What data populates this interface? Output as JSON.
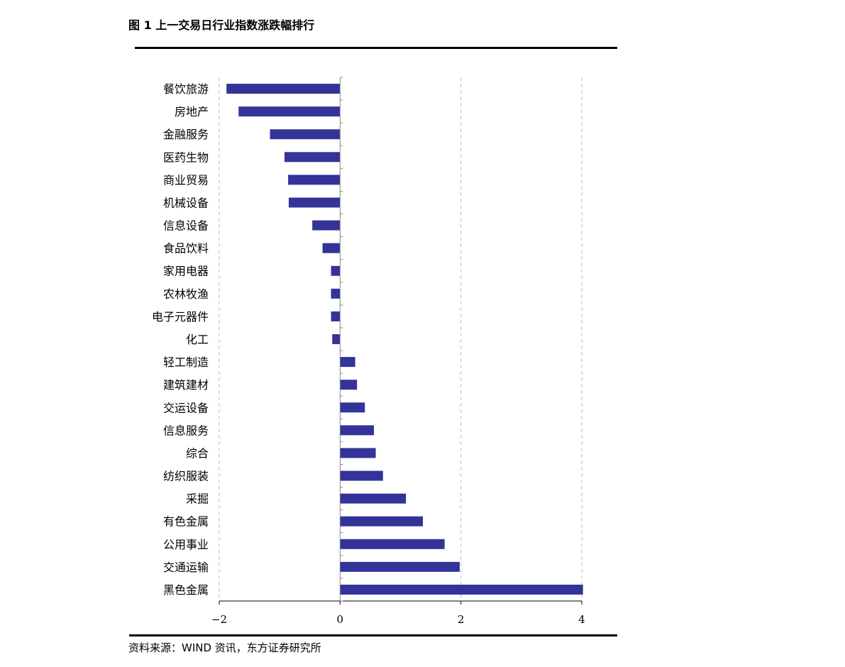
{
  "figure": {
    "title": "图 1  上一交易日行业指数涨跌幅排行",
    "source": "资料来源：WIND 资讯，东方证券研究所"
  },
  "colors": {
    "bar": "#333399",
    "grid": "#bbbbbb",
    "axis": "#000000"
  },
  "chart_data": {
    "type": "bar",
    "orientation": "horizontal",
    "title": "",
    "xlabel": "",
    "ylabel": "",
    "xlim": [
      -2,
      4
    ],
    "x_ticks": [
      -2,
      0,
      2,
      4
    ],
    "x_tick_labels": [
      "−2",
      "0",
      "2",
      "4"
    ],
    "grid": "vertical-dashed",
    "categories": [
      "餐饮旅游",
      "房地产",
      "金融服务",
      "医药生物",
      "商业贸易",
      "机械设备",
      "信息设备",
      "食品饮料",
      "家用电器",
      "农林牧渔",
      "电子元器件",
      "化工",
      "轻工制造",
      "建筑建材",
      "交运设备",
      "信息服务",
      "综合",
      "纺织服装",
      "采掘",
      "有色金属",
      "公用事业",
      "交通运输",
      "黑色金属"
    ],
    "values": [
      -1.88,
      -1.68,
      -1.16,
      -0.92,
      -0.86,
      -0.85,
      -0.46,
      -0.29,
      -0.15,
      -0.15,
      -0.15,
      -0.13,
      0.25,
      0.28,
      0.41,
      0.56,
      0.59,
      0.71,
      1.09,
      1.37,
      1.73,
      1.98,
      4.02
    ]
  }
}
